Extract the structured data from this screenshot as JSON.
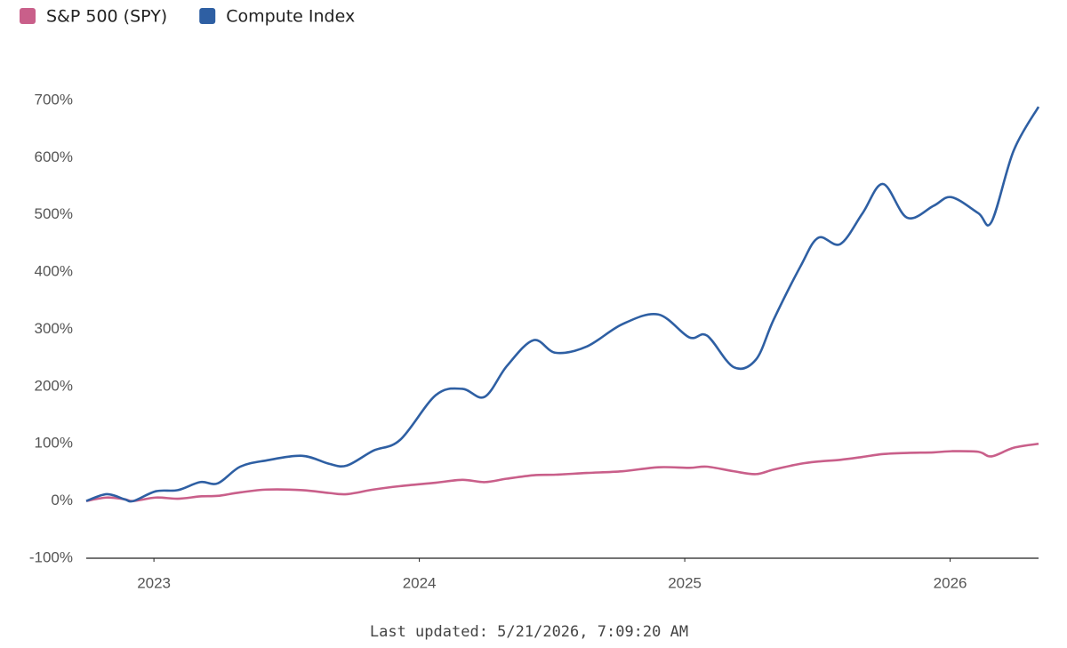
{
  "chart_data": {
    "type": "line",
    "footer": "Last updated: 5/21/2026, 7:09:20 AM",
    "legend": "top-left",
    "grid": false,
    "x": [
      2022.745,
      2022.822,
      2022.889,
      2022.923,
      2023.007,
      2023.09,
      2023.174,
      2023.241,
      2023.325,
      2023.425,
      2023.559,
      2023.66,
      2023.727,
      2023.827,
      2023.928,
      2024.062,
      2024.162,
      2024.246,
      2024.33,
      2024.43,
      2024.514,
      2024.631,
      2024.765,
      2024.9,
      2025.017,
      2025.084,
      2025.184,
      2025.268,
      2025.335,
      2025.436,
      2025.503,
      2025.586,
      2025.67,
      2025.747,
      2025.838,
      2025.938,
      2026.005,
      2026.106,
      2026.156,
      2026.239,
      2026.333
    ],
    "series": [
      {
        "name": "S&P 500 (SPY)",
        "color": "#c95f8a",
        "values": [
          0,
          6,
          3,
          0,
          6,
          4,
          8,
          9,
          15,
          20,
          19,
          14,
          12,
          20,
          26,
          32,
          37,
          33,
          39,
          45,
          46,
          49,
          52,
          59,
          58,
          60,
          52,
          47,
          55,
          65,
          69,
          72,
          77,
          82,
          84,
          85,
          87,
          86,
          78,
          93,
          100
        ]
      },
      {
        "name": "Compute Index",
        "color": "#2e5fa3",
        "values": [
          0,
          12,
          3,
          0,
          17,
          19,
          33,
          31,
          60,
          71,
          79,
          65,
          62,
          88,
          107,
          185,
          196,
          182,
          236,
          281,
          259,
          270,
          309,
          326,
          286,
          289,
          234,
          247,
          317,
          410,
          460,
          449,
          503,
          554,
          495,
          516,
          531,
          503,
          488,
          612,
          689
        ]
      }
    ],
    "xlim": [
      2022.745,
      2026.333
    ],
    "xticks": [
      2023,
      2024,
      2025,
      2026
    ],
    "ylim": [
      -100,
      700
    ],
    "yticks": [
      {
        "value": -100,
        "label": "-100%"
      },
      {
        "value": 0,
        "label": "0%"
      },
      {
        "value": 100,
        "label": "100%"
      },
      {
        "value": 200,
        "label": "200%"
      },
      {
        "value": 300,
        "label": "300%"
      },
      {
        "value": 400,
        "label": "400%"
      },
      {
        "value": 500,
        "label": "500%"
      },
      {
        "value": 600,
        "label": "600%"
      },
      {
        "value": 700,
        "label": "700%"
      }
    ]
  }
}
